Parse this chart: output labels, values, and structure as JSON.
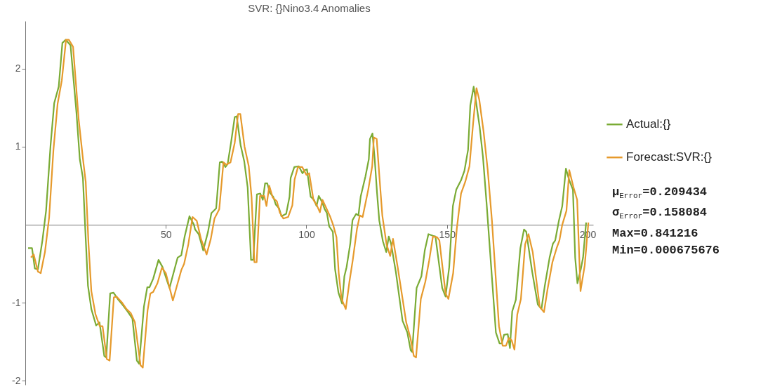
{
  "chart_data": {
    "type": "line",
    "title": "SVR: {}Nino3.4 Anomalies",
    "xlim": [
      0,
      202
    ],
    "xticks": [
      50,
      100,
      150,
      200
    ],
    "ylim": [
      -2.05,
      2.61
    ],
    "yticks": [
      -2,
      -1,
      1,
      2
    ],
    "legend": "right",
    "annotations": [
      "μ$_{Error}$=0.209434",
      "σ$_{Error}$=0.158084",
      "Max=0.841216",
      "Min=0.000675676"
    ],
    "series": [
      {
        "name": "Actual:{}",
        "color": "#7aab35",
        "x": [
          1,
          2.4,
          3.4,
          4.5,
          6.1,
          7.4,
          9,
          10.3,
          11.9,
          13.2,
          14.4,
          16.1,
          18.2,
          19.4,
          20.5,
          21.5,
          22.3,
          23.5,
          25.2,
          26.4,
          28.1,
          28.8,
          30.2,
          31.4,
          33.1,
          34.7,
          36.4,
          38.1,
          39.7,
          40.5,
          42.2,
          43.4,
          44.2,
          45.5,
          47.4,
          48.8,
          51.3,
          54.2,
          55.5,
          56.7,
          58.4,
          60,
          60.4,
          61.7,
          63.3,
          65,
          66.2,
          67.9,
          69.2,
          70,
          71.2,
          72,
          73.3,
          74.5,
          75.2,
          76.6,
          77.9,
          79.1,
          80.3,
          81.1,
          82.4,
          83.6,
          84.5,
          85.3,
          86.1,
          87,
          88.2,
          89.1,
          90.3,
          91.1,
          92.8,
          94,
          94.4,
          95.7,
          97.3,
          98.6,
          99.4,
          100.2,
          101.5,
          102.7,
          103.6,
          104.4,
          105.6,
          106.5,
          107.3,
          108.1,
          109.4,
          110.2,
          111.4,
          112.7,
          113.5,
          114.3,
          115.6,
          116.4,
          117.7,
          118.5,
          119.3,
          121,
          122.2,
          122.6,
          123.5,
          124.3,
          125.1,
          125.9,
          127.2,
          128.4,
          129.3,
          130.1,
          131.8,
          134.2,
          135.9,
          137.1,
          137.6,
          139.2,
          140.9,
          142.1,
          143.4,
          145,
          145.9,
          148.3,
          149.5,
          150.8,
          152.1,
          153.3,
          155,
          156.2,
          157.5,
          158.3,
          159.5,
          160.4,
          161.6,
          162.8,
          164.1,
          165.3,
          167.4,
          168.7,
          169.5,
          170.3,
          171.6,
          172.4,
          173.2,
          174.5,
          176.1,
          177.4,
          178.2,
          180.3,
          182.3,
          183.6,
          184.8,
          186.5,
          187.7,
          188.5,
          189.8,
          191,
          192.3,
          193.5,
          194.8,
          195.6,
          196.4,
          197.6,
          198.4,
          199.5
        ],
        "values": [
          -0.3,
          -0.3,
          -0.56,
          -0.57,
          -0.2,
          0.18,
          1.02,
          1.56,
          1.77,
          2.33,
          2.37,
          2.3,
          1.44,
          0.84,
          0.6,
          -0.18,
          -0.78,
          -1.08,
          -1.29,
          -1.25,
          -1.68,
          -1.7,
          -0.88,
          -0.87,
          -0.96,
          -1.03,
          -1.11,
          -1.2,
          -1.74,
          -1.78,
          -1.05,
          -0.8,
          -0.8,
          -0.69,
          -0.45,
          -0.54,
          -0.81,
          -0.42,
          -0.39,
          -0.15,
          0.11,
          0.0,
          -0.06,
          -0.12,
          -0.33,
          -0.09,
          0.15,
          0.21,
          0.8,
          0.81,
          0.74,
          0.78,
          1.08,
          1.38,
          1.39,
          1.02,
          0.81,
          0.48,
          -0.45,
          -0.45,
          0.39,
          0.4,
          0.32,
          0.53,
          0.53,
          0.41,
          0.36,
          0.26,
          0.21,
          0.11,
          0.14,
          0.36,
          0.6,
          0.74,
          0.75,
          0.66,
          0.7,
          0.71,
          0.36,
          0.32,
          0.24,
          0.37,
          0.29,
          0.2,
          0.15,
          -0.02,
          -0.09,
          -0.57,
          -0.87,
          -1.01,
          -0.66,
          -0.54,
          -0.24,
          0.06,
          0.14,
          0.12,
          0.36,
          0.62,
          0.84,
          1.1,
          1.17,
          0.84,
          0.42,
          0.06,
          -0.21,
          -0.35,
          -0.15,
          -0.24,
          -0.6,
          -1.23,
          -1.38,
          -1.61,
          -1.63,
          -0.81,
          -0.66,
          -0.33,
          -0.12,
          -0.14,
          -0.15,
          -0.81,
          -0.92,
          -0.54,
          0.24,
          0.45,
          0.57,
          0.69,
          0.96,
          1.53,
          1.77,
          1.56,
          1.26,
          0.87,
          0.27,
          -0.33,
          -1.38,
          -1.52,
          -1.52,
          -1.41,
          -1.4,
          -1.58,
          -1.11,
          -0.96,
          -0.3,
          -0.06,
          -0.09,
          -0.6,
          -1.02,
          -1.08,
          -0.78,
          -0.42,
          -0.24,
          -0.2,
          0.05,
          0.24,
          0.72,
          0.57,
          0.45,
          -0.42,
          -0.75,
          -0.57,
          -0.42,
          0.03
        ]
      },
      {
        "name": "Forecast:SVR:{}",
        "color": "#e69a2c",
        "x": [
          2,
          3,
          4.5,
          5.5,
          7,
          8.5,
          10,
          11.5,
          13,
          14.5,
          15.5,
          17,
          19,
          20.5,
          21.5,
          22.5,
          23.5,
          25,
          26.5,
          27.5,
          29,
          30,
          31.5,
          32.5,
          34.5,
          36,
          37.5,
          39,
          41,
          41.8,
          43.5,
          44.5,
          45.5,
          47,
          48.6,
          50,
          52.5,
          55.5,
          56.5,
          58,
          59.5,
          61,
          62.5,
          64.5,
          66,
          67.3,
          69,
          70.5,
          71.5,
          73,
          74.5,
          75.7,
          76.5,
          78,
          79.5,
          80.5,
          81.5,
          82.3,
          83.5,
          85,
          85.8,
          86.8,
          88,
          89.5,
          90.5,
          91.8,
          93.5,
          95,
          95.8,
          97,
          98.5,
          100,
          101,
          102.5,
          103.7,
          104.8,
          105.7,
          107,
          108.5,
          109.5,
          110.7,
          111.5,
          112.5,
          114,
          115.3,
          116.5,
          118,
          119,
          120,
          122,
          123.4,
          124,
          125,
          126,
          127,
          128.5,
          129.8,
          130.8,
          132.5,
          135.5,
          137,
          138.2,
          139,
          140.7,
          142.3,
          143.7,
          145,
          146.5,
          147.3,
          149.5,
          150.5,
          152.2,
          153.5,
          155,
          156.5,
          158,
          159.3,
          160.5,
          161.5,
          163,
          164.5,
          166,
          168.5,
          169.8,
          171,
          172,
          173,
          174,
          175,
          176.3,
          177.8,
          179,
          180.5,
          183,
          184.5,
          185.8,
          187.5,
          189,
          190,
          191,
          192.5,
          193.5,
          195,
          196.3,
          197.5,
          199,
          200.3
        ],
        "values": [
          -0.42,
          -0.38,
          -0.6,
          -0.62,
          -0.35,
          0.1,
          0.95,
          1.55,
          1.85,
          2.37,
          2.37,
          2.28,
          1.35,
          0.85,
          0.55,
          -0.25,
          -0.85,
          -1.15,
          -1.3,
          -1.3,
          -1.72,
          -1.74,
          -0.93,
          -0.92,
          -1.0,
          -1.08,
          -1.13,
          -1.25,
          -1.8,
          -1.83,
          -1.1,
          -0.88,
          -0.86,
          -0.75,
          -0.55,
          -0.62,
          -0.97,
          -0.58,
          -0.5,
          -0.25,
          0.1,
          0.05,
          -0.18,
          -0.38,
          -0.18,
          0.08,
          0.2,
          0.8,
          0.77,
          0.8,
          1.05,
          1.42,
          1.42,
          1.0,
          0.75,
          0.35,
          -0.48,
          -0.48,
          0.37,
          0.37,
          0.24,
          0.5,
          0.35,
          0.3,
          0.16,
          0.08,
          0.1,
          0.25,
          0.58,
          0.74,
          0.74,
          0.64,
          0.66,
          0.32,
          0.25,
          0.16,
          0.32,
          0.22,
          0.1,
          0.0,
          -0.16,
          -0.62,
          -0.95,
          -1.08,
          -0.73,
          -0.45,
          -0.05,
          0.12,
          0.1,
          0.45,
          0.75,
          1.12,
          1.1,
          0.6,
          0.12,
          -0.25,
          -0.4,
          -0.18,
          -0.55,
          -1.25,
          -1.45,
          -1.68,
          -1.7,
          -0.95,
          -0.73,
          -0.45,
          -0.15,
          -0.16,
          -0.2,
          -0.88,
          -0.95,
          -0.62,
          -0.05,
          0.4,
          0.55,
          0.75,
          1.3,
          1.75,
          1.6,
          1.2,
          0.7,
          0.05,
          -1.3,
          -1.55,
          -1.55,
          -1.45,
          -1.48,
          -1.6,
          -1.15,
          -0.95,
          -0.25,
          -0.12,
          -0.35,
          -1.05,
          -1.12,
          -0.82,
          -0.48,
          -0.3,
          -0.2,
          0.0,
          0.18,
          0.7,
          0.48,
          0.32,
          -0.85,
          -0.52,
          0.03
        ]
      }
    ]
  }
}
